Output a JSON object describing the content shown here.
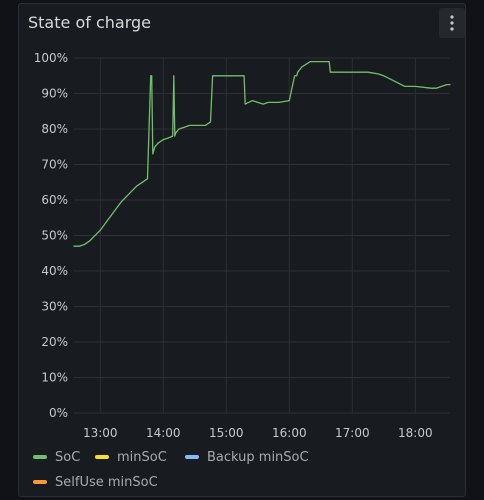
{
  "panel": {
    "title": "State of charge",
    "menu_icon": "kebab-menu-icon"
  },
  "colors": {
    "background": "#181b1f",
    "grid": "#2c2f35",
    "soc": "#73bf69",
    "minsoc": "#fade2a",
    "backup_minsoc": "#8ab8ff",
    "selfuse_minsoc": "#ff9830"
  },
  "legend": [
    {
      "label": "SoC",
      "color": "#73bf69"
    },
    {
      "label": "minSoC",
      "color": "#fade2a"
    },
    {
      "label": "Backup minSoC",
      "color": "#8ab8ff"
    },
    {
      "label": "SelfUse minSoC",
      "color": "#ff9830"
    }
  ],
  "chart_data": {
    "type": "line",
    "title": "State of charge",
    "xlabel": "",
    "ylabel": "",
    "xlim": [
      "12:35",
      "18:33"
    ],
    "ylim": [
      0,
      100
    ],
    "y_ticks": [
      "0%",
      "10%",
      "20%",
      "30%",
      "40%",
      "50%",
      "60%",
      "70%",
      "80%",
      "90%",
      "100%"
    ],
    "x_ticks": [
      "13:00",
      "14:00",
      "15:00",
      "16:00",
      "17:00",
      "18:00"
    ],
    "grid": true,
    "legend_position": "bottom",
    "series": [
      {
        "name": "SoC",
        "color": "#73bf69",
        "x": [
          "12:35",
          "12:40",
          "12:45",
          "12:50",
          "12:55",
          "13:00",
          "13:05",
          "13:10",
          "13:15",
          "13:20",
          "13:25",
          "13:30",
          "13:35",
          "13:40",
          "13:45",
          "13:48",
          "13:49",
          "13:50",
          "13:51",
          "13:52",
          "13:55",
          "14:00",
          "14:05",
          "14:09",
          "14:10",
          "14:11",
          "14:12",
          "14:15",
          "14:20",
          "14:25",
          "14:30",
          "14:35",
          "14:40",
          "14:45",
          "14:47",
          "14:48",
          "14:55",
          "15:00",
          "15:05",
          "15:10",
          "15:15",
          "15:17",
          "15:18",
          "15:25",
          "15:30",
          "15:35",
          "15:40",
          "15:50",
          "16:00",
          "16:05",
          "16:07",
          "16:08",
          "16:12",
          "16:20",
          "16:30",
          "16:38",
          "16:39",
          "16:45",
          "17:00",
          "17:15",
          "17:25",
          "17:30",
          "17:40",
          "17:50",
          "18:00",
          "18:15",
          "18:20",
          "18:25",
          "18:30",
          "18:33"
        ],
        "y": [
          47,
          47,
          47.5,
          48.5,
          50,
          51.5,
          53.5,
          55.5,
          57.5,
          59.5,
          61,
          62.5,
          64,
          65,
          66,
          95,
          95,
          73,
          74,
          75,
          76,
          77,
          77.5,
          78,
          95,
          78,
          79,
          80,
          80.5,
          81,
          81,
          81,
          81,
          82,
          95,
          95,
          95,
          95,
          95,
          95,
          95,
          95,
          87,
          88,
          87.5,
          87,
          87.5,
          87.5,
          88,
          95,
          95,
          96,
          97.5,
          99,
          99,
          99,
          96,
          96,
          96,
          96,
          95.5,
          95,
          93.5,
          92,
          92,
          91.5,
          91.5,
          92,
          92.5,
          92.5
        ]
      },
      {
        "name": "minSoC",
        "color": "#fade2a",
        "x": [],
        "y": []
      },
      {
        "name": "Backup minSoC",
        "color": "#8ab8ff",
        "x": [],
        "y": []
      },
      {
        "name": "SelfUse minSoC",
        "color": "#ff9830",
        "x": [],
        "y": []
      }
    ]
  }
}
